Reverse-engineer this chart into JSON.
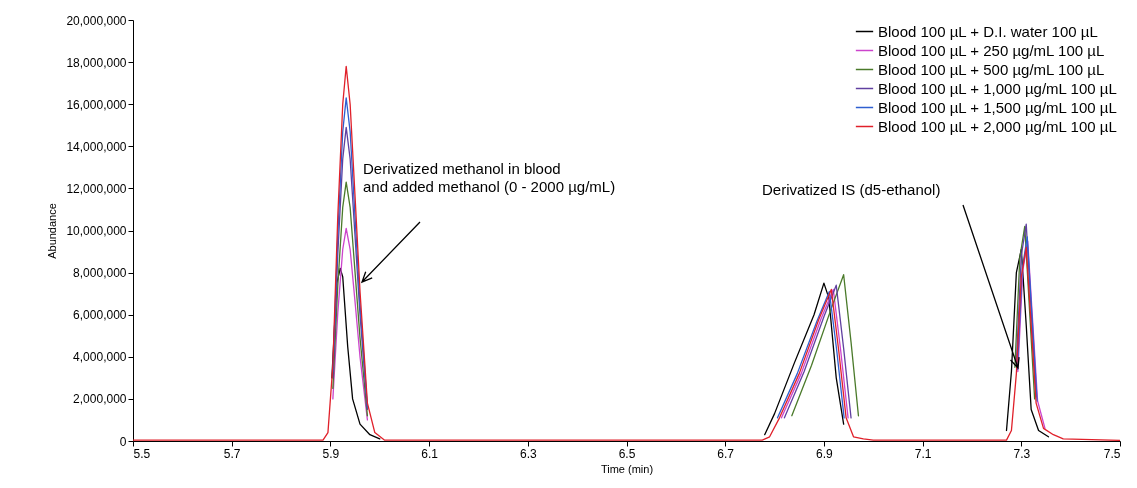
{
  "chart_data": {
    "type": "line",
    "xlabel": "Time (min)",
    "ylabel": "Abundance",
    "xlim": [
      5.5,
      7.5
    ],
    "xticks": [
      5.5,
      5.7,
      5.9,
      6.1,
      6.3,
      6.5,
      6.7,
      6.9,
      7.1,
      7.3,
      7.5
    ],
    "ylim": [
      0,
      20000000
    ],
    "yticks": [
      {
        "value": 0,
        "label": "0"
      },
      {
        "value": 2000000,
        "label": "2,000,000"
      },
      {
        "value": 4000000,
        "label": "4,000,000"
      },
      {
        "value": 6000000,
        "label": "6,000,000"
      },
      {
        "value": 8000000,
        "label": "8,000,000"
      },
      {
        "value": 10000000,
        "label": "10,000,000"
      },
      {
        "value": 12000000,
        "label": "12,000,000"
      },
      {
        "value": 14000000,
        "label": "14,000,000"
      },
      {
        "value": 16000000,
        "label": "16,000,000"
      },
      {
        "value": 18000000,
        "label": "18,000,000"
      },
      {
        "value": 20000000,
        "label": "20,000,000"
      }
    ],
    "grid": false,
    "legend": "top right",
    "marker": "none",
    "line_style": "solid",
    "annotations": [
      "Derivatized methanol in blood\nand added methanol (0 - 2000 µg/mL)",
      "Derivatized IS (d5-ethanol)"
    ],
    "series": [
      {
        "name": "Blood 100 µL + D.I. water 100 µL",
        "color": "#000000",
        "x": [
          5.903,
          5.913,
          5.92,
          5.925,
          5.935,
          5.945,
          5.96,
          5.98,
          6.0,
          null,
          6.78,
          6.8,
          6.84,
          6.88,
          6.9,
          6.91,
          6.925,
          6.94,
          null,
          7.27,
          7.28,
          7.29,
          7.3,
          7.31,
          7.32,
          7.335,
          7.355
        ],
        "values": [
          3000000,
          7500000,
          8200000,
          7800000,
          4500000,
          2000000,
          800000,
          300000,
          100000,
          null,
          300000,
          1300000,
          3700000,
          6000000,
          7500000,
          6800000,
          3000000,
          800000,
          null,
          500000,
          3300000,
          8000000,
          9100000,
          5500000,
          1500000,
          500000,
          200000
        ]
      },
      {
        "name": "Blood 100 µL + 250 µg/mL 100 µL",
        "color": "#cc44cc",
        "x": [
          5.905,
          5.915,
          5.925,
          5.932,
          5.94,
          5.95,
          5.96,
          5.975,
          null,
          6.814,
          6.854,
          6.894,
          6.919,
          6.934,
          6.949,
          null,
          7.293,
          7.303,
          7.313,
          7.323,
          7.333,
          7.348
        ],
        "values": [
          2000000,
          6100000,
          9100000,
          10100000,
          9100000,
          6600000,
          4000000,
          1000000,
          null,
          1100000,
          3200000,
          5800000,
          7200000,
          4300000,
          1100000,
          null,
          3300000,
          8100000,
          9500000,
          5700000,
          1900000,
          600000
        ]
      },
      {
        "name": "Blood 100 µL + 500 µg/mL 100 µL",
        "color": "#4a7a2a",
        "x": [
          5.905,
          5.915,
          5.925,
          5.932,
          5.94,
          5.95,
          5.96,
          5.975,
          null,
          6.835,
          6.875,
          6.915,
          6.94,
          6.955,
          6.97,
          null,
          7.287,
          7.297,
          7.307,
          7.317,
          7.327
        ],
        "values": [
          2500000,
          7400000,
          11100000,
          12300000,
          11100000,
          8000000,
          4900000,
          1200000,
          null,
          1200000,
          3600000,
          6300000,
          7900000,
          4700000,
          1200000,
          null,
          3500000,
          8700000,
          10200000,
          6100000,
          2000000
        ]
      },
      {
        "name": "Blood 100 µL + 1,000 µg/mL 100 µL",
        "color": "#6040a0",
        "x": [
          5.905,
          5.915,
          5.925,
          5.932,
          5.94,
          5.95,
          5.96,
          5.975,
          null,
          6.82,
          6.86,
          6.9,
          6.925,
          6.94,
          6.955,
          null,
          7.29,
          7.3,
          7.31,
          7.32,
          7.33
        ],
        "values": [
          3000000,
          8900000,
          13400000,
          14900000,
          13400000,
          9700000,
          6000000,
          1500000,
          null,
          1100000,
          3300000,
          5900000,
          7400000,
          4400000,
          1100000,
          null,
          3700000,
          8800000,
          10300000,
          6200000,
          2100000
        ]
      },
      {
        "name": "Blood 100 µL + 1,500 µg/mL 100 µL",
        "color": "#2e5fd0",
        "x": [
          5.905,
          5.915,
          5.925,
          5.932,
          5.94,
          5.95,
          5.96,
          5.975,
          null,
          6.806,
          6.846,
          6.886,
          6.911,
          6.926,
          6.941,
          null,
          7.292,
          7.302,
          7.312,
          7.322,
          7.332
        ],
        "values": [
          3300000,
          9800000,
          14700000,
          16300000,
          14700000,
          10600000,
          6500000,
          1600000,
          null,
          1100000,
          3200000,
          5700000,
          7100000,
          4300000,
          1100000,
          null,
          3400000,
          8200000,
          9700000,
          5800000,
          1900000
        ]
      },
      {
        "name": "Blood 100 µL + 2,000 µg/mL 100 µL",
        "color": "#e0202a",
        "x": [
          5.5,
          5.885,
          5.895,
          5.905,
          5.915,
          5.925,
          5.932,
          5.94,
          5.95,
          5.96,
          5.975,
          5.99,
          6.01,
          6.5,
          6.775,
          6.79,
          6.81,
          6.85,
          6.89,
          6.915,
          6.93,
          6.945,
          6.96,
          6.98,
          7.0,
          7.27,
          7.28,
          7.29,
          7.3,
          7.31,
          7.32,
          7.33,
          7.345,
          7.365,
          7.385,
          7.5
        ],
        "values": [
          40000,
          40000,
          400000,
          3600000,
          10700000,
          16000000,
          17800000,
          16000000,
          11600000,
          7100000,
          1800000,
          400000,
          40000,
          40000,
          40000,
          200000,
          1100000,
          3200000,
          5800000,
          7200000,
          4300000,
          1100000,
          200000,
          100000,
          40000,
          40000,
          500000,
          3200000,
          7800000,
          9200000,
          5500000,
          1800000,
          600000,
          300000,
          100000,
          30000
        ]
      }
    ]
  }
}
